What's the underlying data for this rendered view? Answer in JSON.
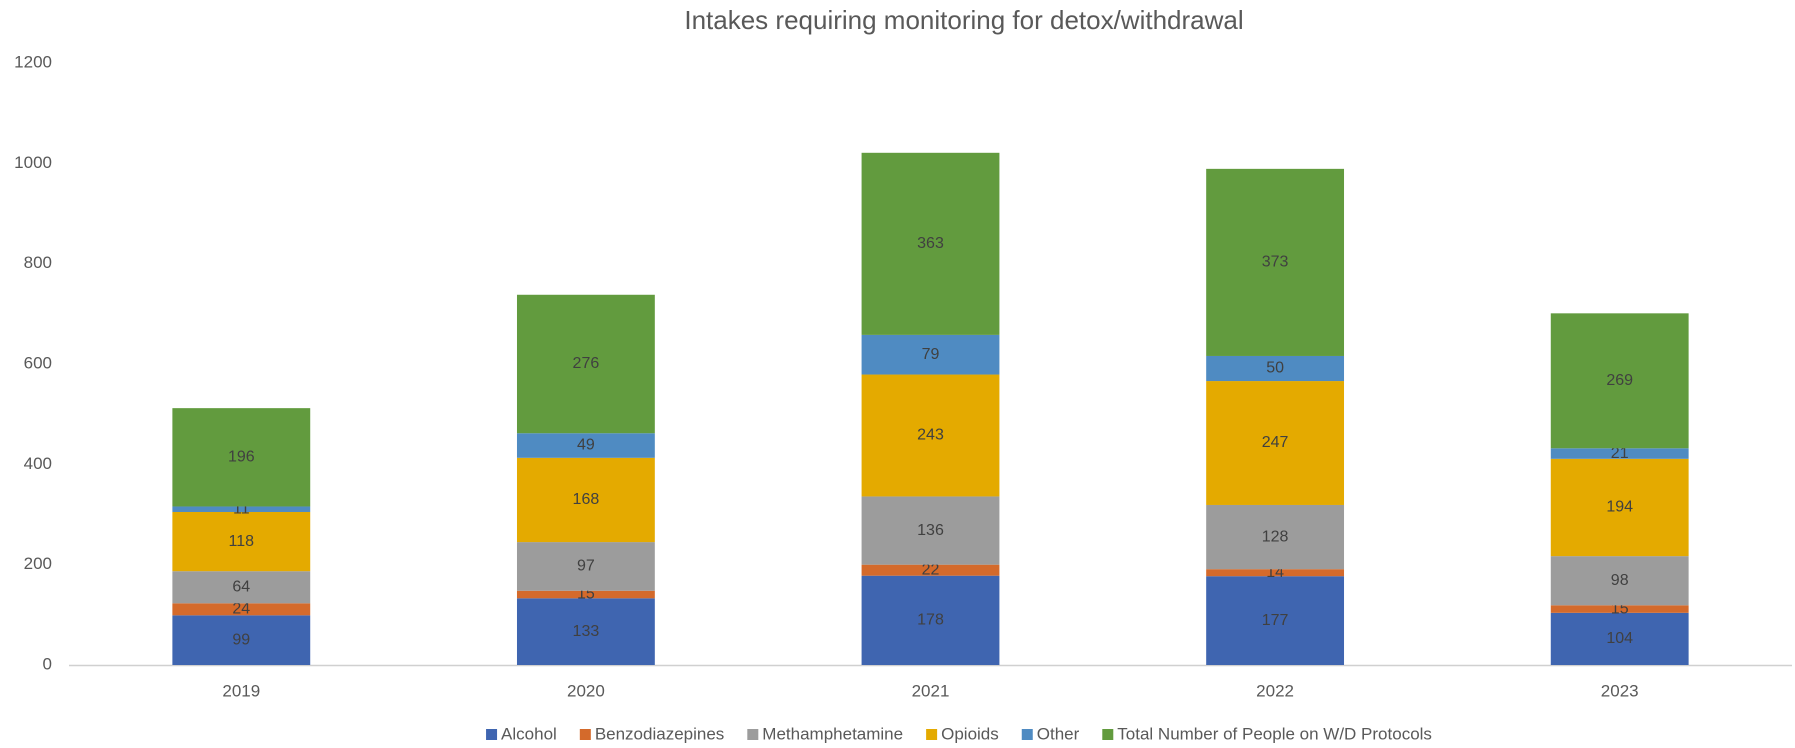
{
  "chart_data": {
    "type": "stacked_bar",
    "title": "Intakes requiring monitoring for detox/withdrawal",
    "categories": [
      "2019",
      "2020",
      "2021",
      "2022",
      "2023"
    ],
    "series": [
      {
        "name": "Alcohol",
        "color": "#3f65b0",
        "values": [
          99,
          133,
          178,
          177,
          104
        ]
      },
      {
        "name": "Benzodiazepines",
        "color": "#d46a2b",
        "values": [
          24,
          15,
          22,
          14,
          15
        ]
      },
      {
        "name": "Methamphetamine",
        "color": "#9c9c9c",
        "values": [
          64,
          97,
          136,
          128,
          98
        ]
      },
      {
        "name": "Opioids",
        "color": "#e4aa00",
        "values": [
          118,
          168,
          243,
          247,
          194
        ]
      },
      {
        "name": "Other",
        "color": "#4f8bc2",
        "values": [
          11,
          49,
          79,
          50,
          21
        ]
      },
      {
        "name": "Total Number of People on W/D Protocols",
        "color": "#629b3e",
        "values": [
          196,
          276,
          363,
          373,
          269
        ]
      }
    ],
    "ylim": [
      0,
      1200
    ],
    "yticks": [
      0,
      200,
      400,
      600,
      800,
      1000,
      1200
    ],
    "grid": false,
    "legend": "bottom"
  }
}
